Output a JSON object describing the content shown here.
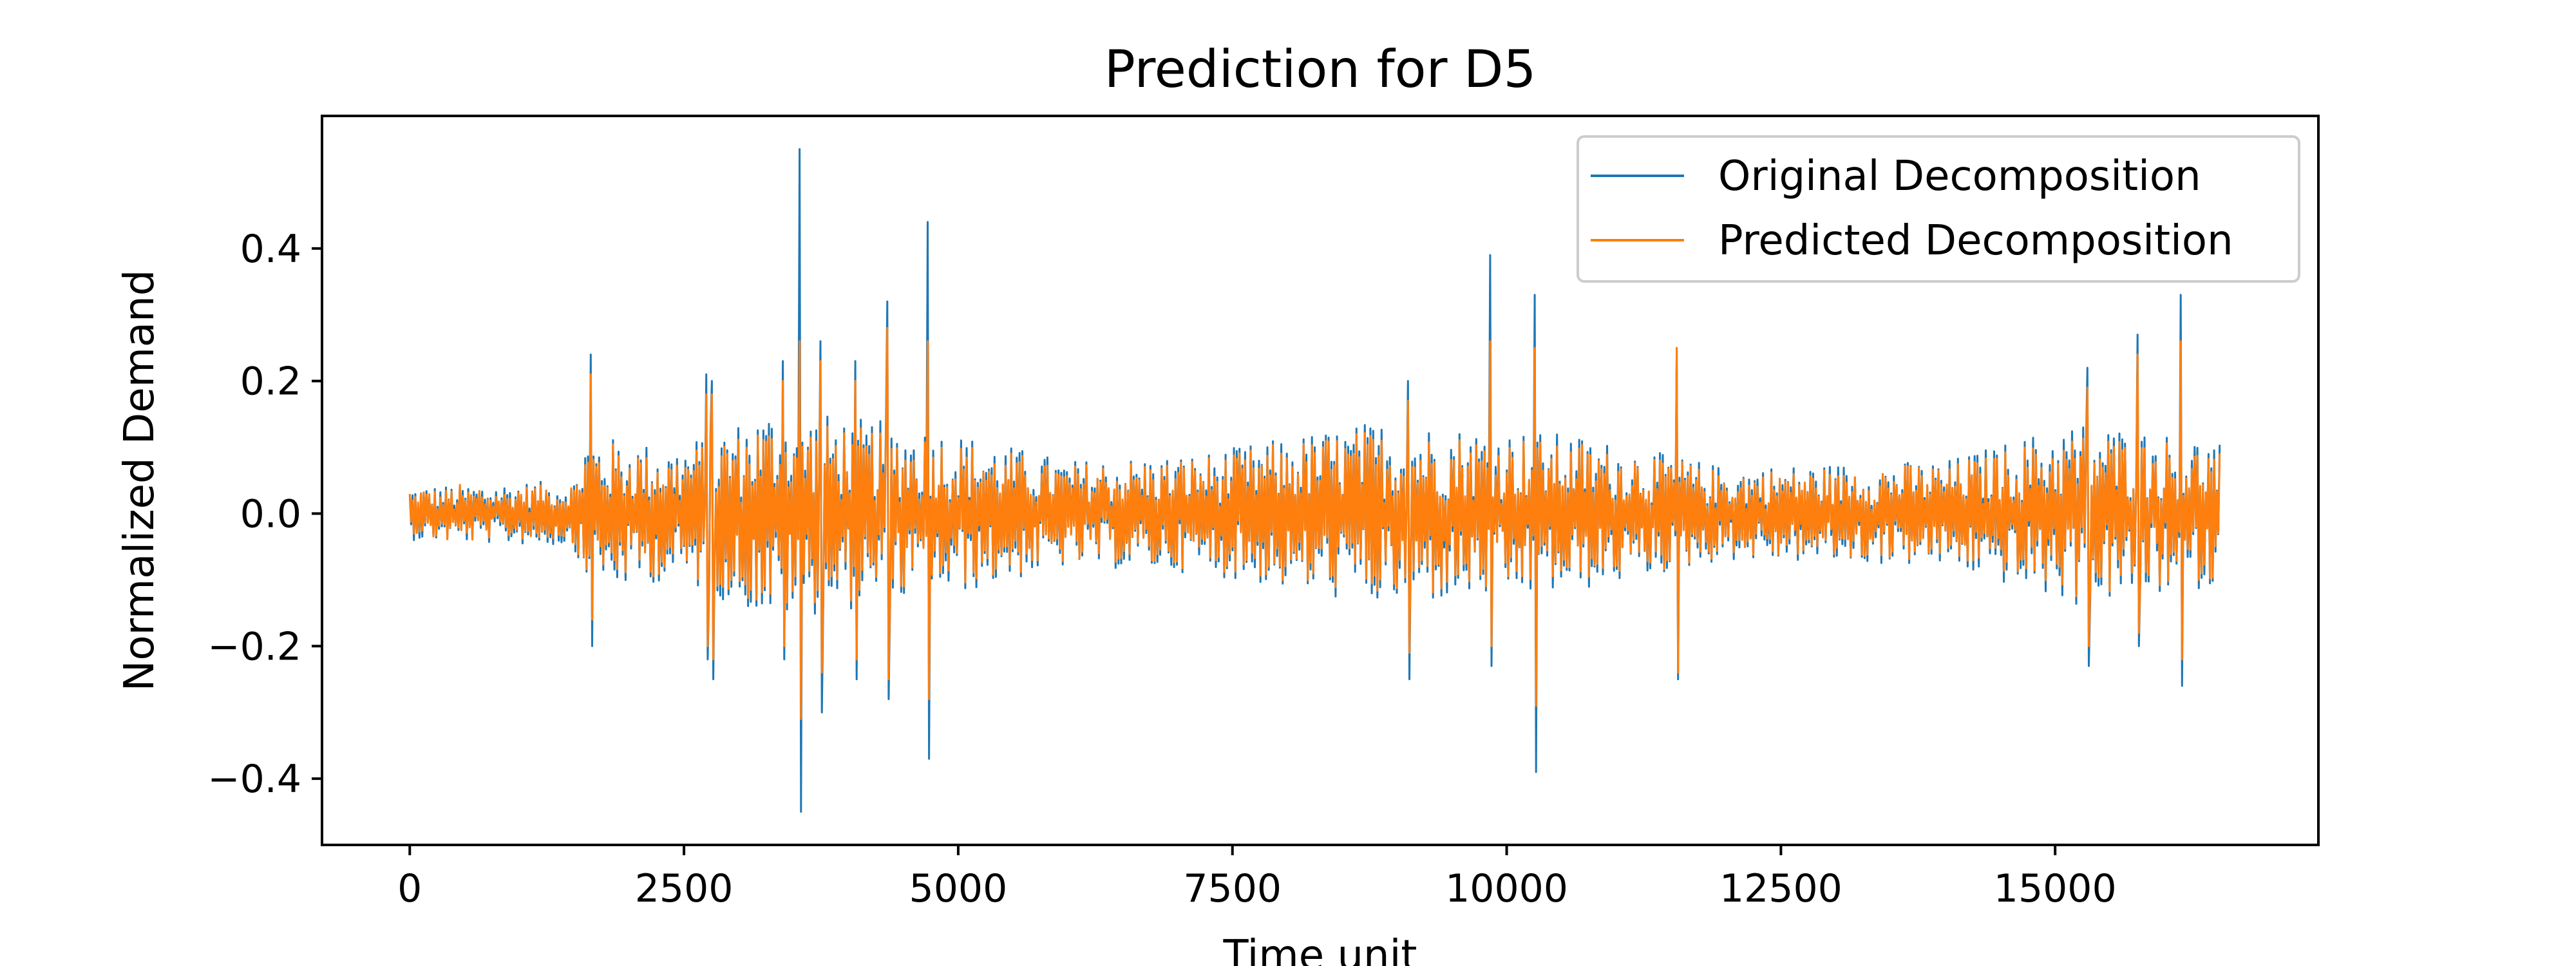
{
  "chart_data": {
    "type": "line",
    "title": "Prediction for D5",
    "xlabel": "Time unit",
    "ylabel": "Normalized Demand",
    "xlim": [
      -800,
      17400
    ],
    "ylim": [
      -0.5,
      0.6
    ],
    "xticks": [
      0,
      2500,
      5000,
      7500,
      10000,
      12500,
      15000
    ],
    "xtick_labels": [
      "0",
      "2500",
      "5000",
      "7500",
      "10000",
      "12500",
      "15000"
    ],
    "yticks": [
      -0.4,
      -0.2,
      0.0,
      0.2,
      0.4
    ],
    "ytick_labels": [
      "−0.4",
      "−0.2",
      "0.0",
      "0.2",
      "0.4"
    ],
    "grid": false,
    "legend_position": "top-right",
    "x_range": [
      0,
      16500
    ],
    "series": [
      {
        "name": "Original Decomposition",
        "color": "#1f77b4",
        "peaks": [
          {
            "x": 1650,
            "max": 0.24,
            "min": -0.2
          },
          {
            "x": 2700,
            "max": 0.21,
            "min": -0.22
          },
          {
            "x": 2750,
            "max": 0.2,
            "min": -0.25
          },
          {
            "x": 3400,
            "max": 0.23,
            "min": -0.22
          },
          {
            "x": 3560,
            "max": 0.55,
            "min": -0.45
          },
          {
            "x": 3750,
            "max": 0.26,
            "min": -0.3
          },
          {
            "x": 4060,
            "max": 0.23,
            "min": -0.25
          },
          {
            "x": 4350,
            "max": 0.32,
            "min": -0.28
          },
          {
            "x": 4720,
            "max": 0.44,
            "min": -0.37
          },
          {
            "x": 9100,
            "max": 0.2,
            "min": -0.25
          },
          {
            "x": 9850,
            "max": 0.39,
            "min": -0.23
          },
          {
            "x": 10250,
            "max": 0.33,
            "min": -0.39
          },
          {
            "x": 11550,
            "max": 0.25,
            "min": -0.25
          },
          {
            "x": 15300,
            "max": 0.22,
            "min": -0.23
          },
          {
            "x": 15750,
            "max": 0.27,
            "min": -0.2
          },
          {
            "x": 16150,
            "max": 0.33,
            "min": -0.26
          }
        ]
      },
      {
        "name": "Predicted Decomposition",
        "color": "#ff7f0e",
        "peaks": [
          {
            "x": 1650,
            "max": 0.21,
            "min": -0.16
          },
          {
            "x": 2700,
            "max": 0.18,
            "min": -0.2
          },
          {
            "x": 2750,
            "max": 0.18,
            "min": -0.22
          },
          {
            "x": 3400,
            "max": 0.2,
            "min": -0.2
          },
          {
            "x": 3560,
            "max": 0.26,
            "min": -0.31
          },
          {
            "x": 3750,
            "max": 0.23,
            "min": -0.24
          },
          {
            "x": 4060,
            "max": 0.2,
            "min": -0.22
          },
          {
            "x": 4350,
            "max": 0.28,
            "min": -0.25
          },
          {
            "x": 4720,
            "max": 0.26,
            "min": -0.28
          },
          {
            "x": 9100,
            "max": 0.17,
            "min": -0.21
          },
          {
            "x": 9850,
            "max": 0.26,
            "min": -0.2
          },
          {
            "x": 10250,
            "max": 0.25,
            "min": -0.29
          },
          {
            "x": 11550,
            "max": 0.25,
            "min": -0.24
          },
          {
            "x": 15300,
            "max": 0.19,
            "min": -0.2
          },
          {
            "x": 15750,
            "max": 0.24,
            "min": -0.18
          },
          {
            "x": 16150,
            "max": 0.26,
            "min": -0.22
          }
        ]
      }
    ],
    "envelope": [
      {
        "x": 0,
        "amp": 0.04
      },
      {
        "x": 1500,
        "amp": 0.05
      },
      {
        "x": 1600,
        "amp": 0.12
      },
      {
        "x": 2400,
        "amp": 0.1
      },
      {
        "x": 3300,
        "amp": 0.16
      },
      {
        "x": 4800,
        "amp": 0.13
      },
      {
        "x": 6000,
        "amp": 0.08
      },
      {
        "x": 7200,
        "amp": 0.09
      },
      {
        "x": 8800,
        "amp": 0.14
      },
      {
        "x": 10600,
        "amp": 0.12
      },
      {
        "x": 12000,
        "amp": 0.07
      },
      {
        "x": 14000,
        "amp": 0.08
      },
      {
        "x": 15200,
        "amp": 0.14
      },
      {
        "x": 16500,
        "amp": 0.11
      }
    ]
  }
}
